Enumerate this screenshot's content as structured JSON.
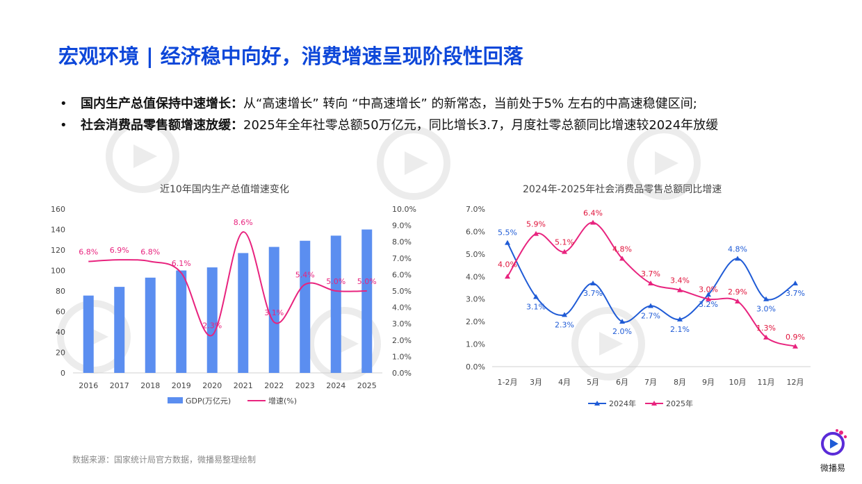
{
  "header": {
    "title": "宏观环境 | 经济稳中向好，消费增速呈现阶段性回落"
  },
  "bullets": [
    {
      "bold": "国内生产总值保持中速增长：",
      "text": "从“高速增长” 转向 “中高速增长” 的新常态，当前处于5% 左右的中高速稳健区间;"
    },
    {
      "bold": "社会消费品零售额增速放缓：",
      "text": "2025年全年社零总额50万亿元，同比增长3.7，月度社零总额同比增速较2024年放缓"
    }
  ],
  "footer": {
    "source": "数据来源：国家统计局官方数据，微播易整理绘制"
  },
  "brand": {
    "name": "微播易",
    "accent": "#1f5bd6",
    "pink": "#e8237e"
  },
  "chart_data": [
    {
      "type": "bar",
      "title": "近10年国内生产总值增速变化",
      "categories": [
        "2016",
        "2017",
        "2018",
        "2019",
        "2020",
        "2021",
        "2022",
        "2023",
        "2024",
        "2025"
      ],
      "series": [
        {
          "name": "GDP(万亿元)",
          "kind": "bar",
          "color": "#5b8ef0",
          "values": [
            75.5,
            84,
            93,
            100,
            103,
            117,
            123,
            129,
            134,
            140
          ]
        },
        {
          "name": "增速(%)",
          "kind": "line",
          "color": "#e8237e",
          "axis": "right",
          "values": [
            6.8,
            6.9,
            6.8,
            6.1,
            2.3,
            8.6,
            3.1,
            5.4,
            5.0,
            5.0
          ],
          "labels": [
            "6.8%",
            "6.9%",
            "6.8%",
            "6.1%",
            "2.3%",
            "8.6%",
            "3.1%",
            "5.4%",
            "5.0%",
            "5.0%"
          ]
        }
      ],
      "ylim": [
        0,
        160
      ],
      "y_ticks": [
        "0",
        "20",
        "40",
        "60",
        "80",
        "100",
        "120",
        "140",
        "160"
      ],
      "y2lim": [
        0,
        10
      ],
      "y2_ticks": [
        "0.0%",
        "1.0%",
        "2.0%",
        "3.0%",
        "4.0%",
        "5.0%",
        "6.0%",
        "7.0%",
        "8.0%",
        "9.0%",
        "10.0%"
      ],
      "legend": "bottom"
    },
    {
      "type": "line",
      "title": "2024年-2025年社会消费品零售总额同比增速",
      "categories": [
        "1-2月",
        "3月",
        "4月",
        "5月",
        "6月",
        "7月",
        "8月",
        "9月",
        "10月",
        "11月",
        "12月"
      ],
      "series": [
        {
          "name": "2024年",
          "color": "#1f5bd6",
          "values": [
            5.5,
            3.1,
            2.3,
            3.7,
            2.0,
            2.7,
            2.1,
            3.2,
            4.8,
            3.0,
            3.7
          ],
          "labels": [
            "5.5%",
            "3.1%",
            "2.3%",
            "3.7%",
            "2.0%",
            "2.7%",
            "2.1%",
            "3.2%",
            "4.8%",
            "3.0%",
            "3.7%"
          ]
        },
        {
          "name": "2025年",
          "color": "#e8237e",
          "values": [
            4.0,
            5.9,
            5.1,
            6.4,
            4.8,
            3.7,
            3.4,
            3.0,
            2.9,
            1.3,
            0.9
          ],
          "labels": [
            "4.0%",
            "5.9%",
            "5.1%",
            "6.4%",
            "4.8%",
            "3.7%",
            "3.4%",
            "3.0%",
            "2.9%",
            "1.3%",
            "0.9%"
          ]
        }
      ],
      "ylim": [
        0,
        7
      ],
      "y_ticks": [
        "0.0%",
        "1.0%",
        "2.0%",
        "3.0%",
        "4.0%",
        "5.0%",
        "6.0%",
        "7.0%"
      ],
      "legend": "bottom"
    }
  ]
}
